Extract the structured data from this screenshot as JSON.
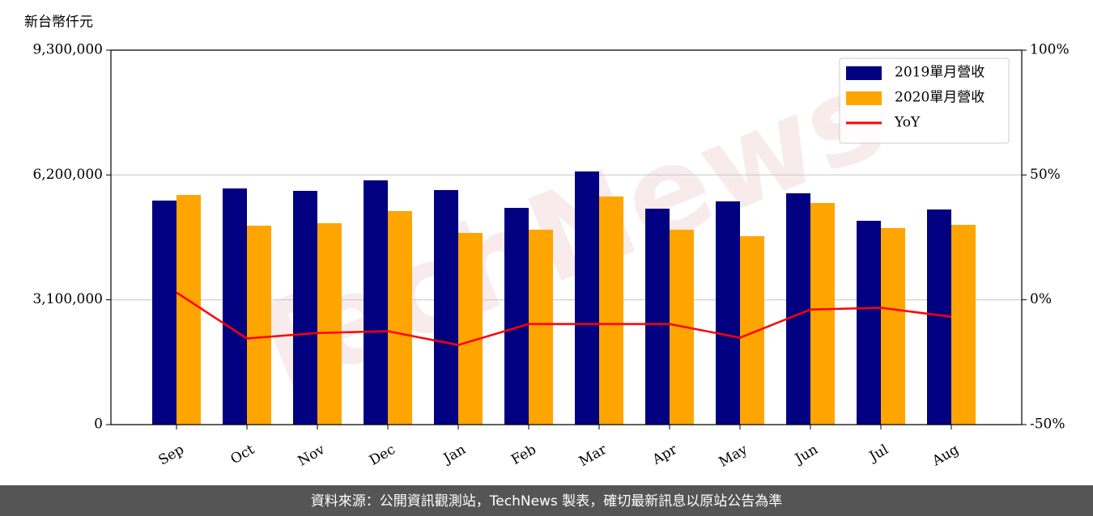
{
  "chart_data": {
    "type": "bar",
    "y_label": "新台幣仟元",
    "watermark": "TechNews",
    "footer": "資料來源：公開資訊觀測站，TechNews 製表，確切最新訊息以原站公告為準",
    "categories": [
      "Sep",
      "Oct",
      "Nov",
      "Dec",
      "Jan",
      "Feb",
      "Mar",
      "Apr",
      "May",
      "Jun",
      "Jul",
      "Aug"
    ],
    "series": [
      {
        "name": "2019單月營收",
        "type": "bar",
        "color": "#000080",
        "values": [
          5564000,
          5865000,
          5805000,
          6066000,
          5825000,
          5383000,
          6287000,
          5363000,
          5544000,
          5745000,
          5062000,
          5343000
        ]
      },
      {
        "name": "2020單月營收",
        "type": "bar",
        "color": "#ffa500",
        "values": [
          5705000,
          4941000,
          5001000,
          5303000,
          4760000,
          4841000,
          5664000,
          4841000,
          4680000,
          5504000,
          4881000,
          4961000
        ]
      },
      {
        "name": "YoY",
        "type": "line",
        "axis": "y2",
        "color": "#ff0000",
        "values": [
          2.9,
          -15.5,
          -13.3,
          -12.6,
          -18.1,
          -9.7,
          -9.7,
          -9.7,
          -15.2,
          -3.9,
          -3.2,
          -6.8
        ]
      }
    ],
    "ylim": [
      0,
      9300000
    ],
    "yticks": [
      0,
      {
        "value": 3100000,
        "label": "3,100,000"
      },
      {
        "value": 6200000,
        "label": "6,200,000"
      },
      {
        "value": 9300000,
        "label": "9,300,000"
      }
    ],
    "y2lim": [
      -50,
      100
    ],
    "y2ticks": [
      {
        "value": -50,
        "label": "-50%"
      },
      {
        "value": 0,
        "label": "0%"
      },
      {
        "value": 50,
        "label": "50%"
      },
      {
        "value": 100,
        "label": "100%"
      }
    ],
    "grid": true,
    "legend": "upper right"
  }
}
